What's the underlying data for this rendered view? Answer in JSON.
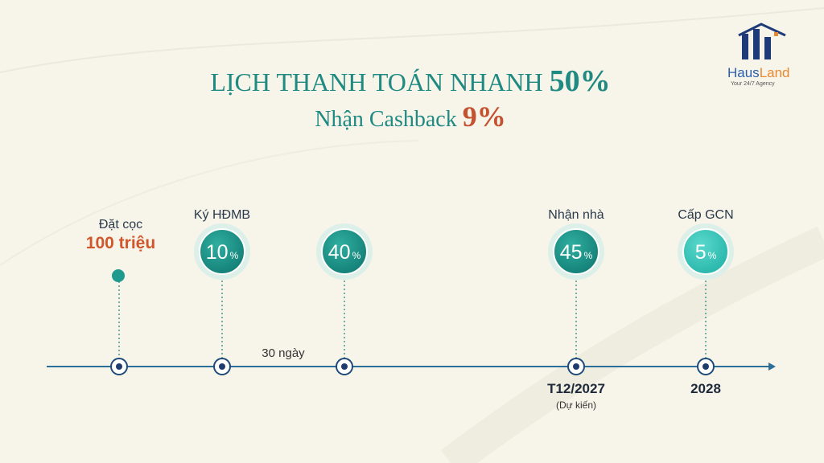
{
  "header": {
    "title": "LỊCH THANH TOÁN NHANH",
    "title_highlight": "50%",
    "subtitle": "Nhận Cashback",
    "subtitle_highlight": "9%"
  },
  "logo": {
    "name_part1": "Haus",
    "name_part2": "Land",
    "tagline": "Your 24/7 Agency"
  },
  "timeline": {
    "interval_label": "30 ngày",
    "steps": [
      {
        "label": "Đặt cọc",
        "amount": "100 triệu"
      },
      {
        "label": "Ký HĐMB",
        "percent": 10,
        "percent_unit": "%"
      },
      {
        "percent": 40,
        "percent_unit": "%"
      },
      {
        "label": "Nhận nhà",
        "percent": 45,
        "percent_unit": "%",
        "date": "T12/2027",
        "date_note": "(Dự kiến)"
      },
      {
        "label": "Cấp GCN",
        "percent": 5,
        "percent_unit": "%",
        "date": "2028"
      }
    ]
  }
}
